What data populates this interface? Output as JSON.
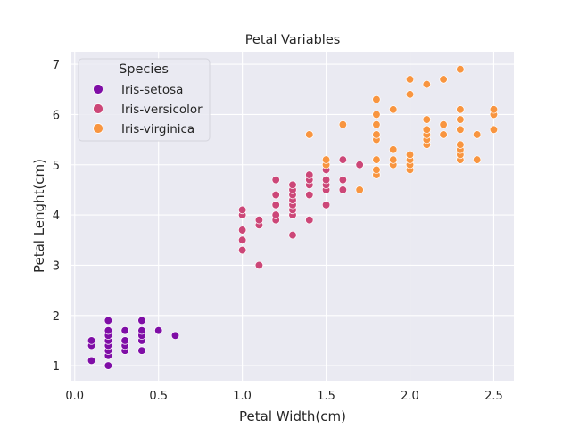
{
  "chart_data": {
    "type": "scatter",
    "title": "Petal Variables",
    "xlabel": "Petal Width(cm)",
    "ylabel": "Petal Lenght(cm)",
    "xlim": [
      -0.02,
      2.62
    ],
    "ylim": [
      0.7,
      7.25
    ],
    "xticks": [
      "0.0",
      "0.5",
      "1.0",
      "1.5",
      "2.0",
      "2.5"
    ],
    "yticks": [
      "1",
      "2",
      "3",
      "4",
      "5",
      "6",
      "7"
    ],
    "grid": true,
    "legend": {
      "title": "Species",
      "placement": "top-left"
    },
    "series": [
      {
        "name": "Iris-setosa",
        "color": "#7f0ea6",
        "points": [
          [
            0.1,
            1.1
          ],
          [
            0.1,
            1.4
          ],
          [
            0.1,
            1.5
          ],
          [
            0.2,
            1.0
          ],
          [
            0.2,
            1.2
          ],
          [
            0.2,
            1.3
          ],
          [
            0.2,
            1.4
          ],
          [
            0.2,
            1.5
          ],
          [
            0.2,
            1.6
          ],
          [
            0.2,
            1.7
          ],
          [
            0.2,
            1.9
          ],
          [
            0.3,
            1.3
          ],
          [
            0.3,
            1.4
          ],
          [
            0.3,
            1.5
          ],
          [
            0.3,
            1.7
          ],
          [
            0.4,
            1.3
          ],
          [
            0.4,
            1.5
          ],
          [
            0.4,
            1.6
          ],
          [
            0.4,
            1.7
          ],
          [
            0.4,
            1.9
          ],
          [
            0.5,
            1.7
          ],
          [
            0.6,
            1.6
          ]
        ]
      },
      {
        "name": "Iris-versicolor",
        "color": "#cc4778",
        "points": [
          [
            1.0,
            3.3
          ],
          [
            1.0,
            3.5
          ],
          [
            1.0,
            3.7
          ],
          [
            1.0,
            4.0
          ],
          [
            1.0,
            4.1
          ],
          [
            1.1,
            3.0
          ],
          [
            1.1,
            3.8
          ],
          [
            1.1,
            3.9
          ],
          [
            1.2,
            3.9
          ],
          [
            1.2,
            4.0
          ],
          [
            1.2,
            4.2
          ],
          [
            1.2,
            4.4
          ],
          [
            1.2,
            4.7
          ],
          [
            1.3,
            3.6
          ],
          [
            1.3,
            4.0
          ],
          [
            1.3,
            4.1
          ],
          [
            1.3,
            4.2
          ],
          [
            1.3,
            4.3
          ],
          [
            1.3,
            4.4
          ],
          [
            1.3,
            4.5
          ],
          [
            1.3,
            4.6
          ],
          [
            1.4,
            3.9
          ],
          [
            1.4,
            4.4
          ],
          [
            1.4,
            4.6
          ],
          [
            1.4,
            4.7
          ],
          [
            1.4,
            4.8
          ],
          [
            1.5,
            4.2
          ],
          [
            1.5,
            4.5
          ],
          [
            1.5,
            4.6
          ],
          [
            1.5,
            4.7
          ],
          [
            1.5,
            4.9
          ],
          [
            1.6,
            4.5
          ],
          [
            1.6,
            4.7
          ],
          [
            1.6,
            5.1
          ],
          [
            1.7,
            5.0
          ],
          [
            1.8,
            4.8
          ]
        ]
      },
      {
        "name": "Iris-virginica",
        "color": "#f89540",
        "points": [
          [
            1.4,
            5.6
          ],
          [
            1.5,
            5.0
          ],
          [
            1.5,
            5.1
          ],
          [
            1.6,
            5.8
          ],
          [
            1.7,
            4.5
          ],
          [
            1.8,
            4.8
          ],
          [
            1.8,
            4.9
          ],
          [
            1.8,
            5.1
          ],
          [
            1.8,
            5.5
          ],
          [
            1.8,
            5.6
          ],
          [
            1.8,
            5.8
          ],
          [
            1.8,
            6.0
          ],
          [
            1.8,
            6.3
          ],
          [
            1.9,
            5.0
          ],
          [
            1.9,
            5.1
          ],
          [
            1.9,
            5.3
          ],
          [
            1.9,
            6.1
          ],
          [
            2.0,
            4.9
          ],
          [
            2.0,
            5.0
          ],
          [
            2.0,
            5.1
          ],
          [
            2.0,
            5.2
          ],
          [
            2.0,
            6.4
          ],
          [
            2.0,
            6.7
          ],
          [
            2.1,
            5.4
          ],
          [
            2.1,
            5.5
          ],
          [
            2.1,
            5.6
          ],
          [
            2.1,
            5.7
          ],
          [
            2.1,
            5.9
          ],
          [
            2.1,
            6.6
          ],
          [
            2.2,
            5.6
          ],
          [
            2.2,
            5.8
          ],
          [
            2.2,
            6.7
          ],
          [
            2.3,
            5.1
          ],
          [
            2.3,
            5.2
          ],
          [
            2.3,
            5.3
          ],
          [
            2.3,
            5.4
          ],
          [
            2.3,
            5.7
          ],
          [
            2.3,
            5.9
          ],
          [
            2.3,
            6.1
          ],
          [
            2.3,
            6.9
          ],
          [
            2.4,
            5.1
          ],
          [
            2.4,
            5.6
          ],
          [
            2.5,
            5.7
          ],
          [
            2.5,
            6.0
          ],
          [
            2.5,
            6.1
          ]
        ]
      }
    ]
  }
}
